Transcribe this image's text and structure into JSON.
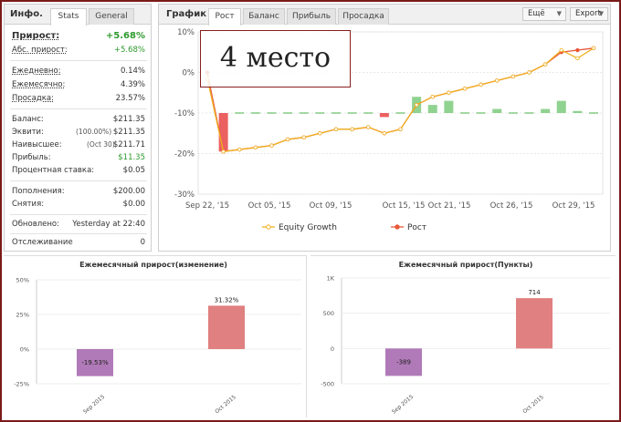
{
  "info": {
    "title": "Инфо.",
    "tabs": [
      "Stats",
      "General"
    ],
    "rows": [
      {
        "label": "Прирост:",
        "value": "+5.68%"
      },
      {
        "label": "Абс. прирост:",
        "value": "+5.68%"
      },
      {
        "label": "Ежедневно:",
        "value": "0.14%"
      },
      {
        "label": "Ежемесячно:",
        "value": "4.39%"
      },
      {
        "label": "Просадка:",
        "value": "23.57%"
      },
      {
        "label": "Баланс:",
        "value": "$211.35"
      },
      {
        "label": "Эквити:",
        "note": "(100.00%)",
        "value": "$211.35"
      },
      {
        "label": "Наивысшее:",
        "note": "(Oct 30)",
        "value": "$211.71"
      },
      {
        "label": "Прибыль:",
        "value": "$11.35"
      },
      {
        "label": "Процентная ставка:",
        "value": "$0.05"
      },
      {
        "label": "Пополнения:",
        "value": "$200.00"
      },
      {
        "label": "Снятия:",
        "value": "$0.00"
      },
      {
        "label": "Обновлено:",
        "value": "Yesterday at 22:40"
      },
      {
        "label": "Отслеживание",
        "value": "0"
      }
    ]
  },
  "main": {
    "title": "График",
    "tabs": [
      "Рост",
      "Баланс",
      "Прибыль",
      "Просадка"
    ],
    "buttons": [
      "Ещё",
      "Export"
    ],
    "overlay_text": "4 место"
  },
  "colors": {
    "growth": "#e8593a",
    "equity": "#f0b020",
    "bar_pos": "#7dca7d",
    "bar_neg": "#e84444",
    "frame": "#7a1a1a"
  },
  "chart_data": [
    {
      "type": "line",
      "y_ticks": [
        "10%",
        "0%",
        "-10%",
        "-20%",
        "-30%"
      ],
      "x_ticks": [
        "Sep 22, '15",
        "Oct 05, '15",
        "Oct 09, '15",
        "Oct 15, '15",
        "Oct 21, '15",
        "Oct 26, '15",
        "Oct 29, '15"
      ],
      "ylim": [
        -30,
        10
      ],
      "legend": [
        "Equity Growth",
        "Рост"
      ],
      "series": [
        {
          "name": "Рост",
          "values": [
            0,
            -19.5,
            -19,
            -18.5,
            -18,
            -16.5,
            -16,
            -15,
            -14,
            -14,
            -13.5,
            -15,
            -14,
            -8,
            -6,
            -5,
            -4,
            -3,
            -2,
            -1,
            0,
            2,
            5,
            5.5,
            6
          ]
        },
        {
          "name": "Equity Growth",
          "values": [
            -1.5,
            -19.5,
            -19,
            -18.5,
            -18,
            -16.5,
            -16,
            -15,
            -14,
            -14,
            -13.5,
            -15,
            -14,
            -8,
            -6,
            -5,
            -4,
            -3,
            -2,
            -1,
            0,
            2,
            5.5,
            3.5,
            6
          ]
        }
      ],
      "bars": [
        0,
        -9.5,
        0,
        0,
        0,
        0,
        0,
        0,
        0,
        0,
        0,
        -1,
        0,
        4,
        2,
        3,
        0,
        0,
        1,
        0,
        0,
        1,
        3,
        0.5,
        0
      ]
    },
    {
      "type": "bar",
      "title": "Ежемесячный прирост(изменение)",
      "categories": [
        "Sep 2015",
        "Oct 2015"
      ],
      "values": [
        -19.53,
        31.32
      ],
      "labels": [
        "-19.53%",
        "31.32%"
      ],
      "y_ticks": [
        "50%",
        "25%",
        "0%",
        "-25%"
      ],
      "ylim": [
        -25,
        50
      ]
    },
    {
      "type": "bar",
      "title": "Ежемесячный прирост(Пункты)",
      "categories": [
        "Sep 2015",
        "Oct 2015"
      ],
      "values": [
        -389,
        714
      ],
      "labels": [
        "-389",
        "714"
      ],
      "y_ticks": [
        "1K",
        "500",
        "0",
        "-500"
      ],
      "ylim": [
        -500,
        1000
      ]
    }
  ]
}
